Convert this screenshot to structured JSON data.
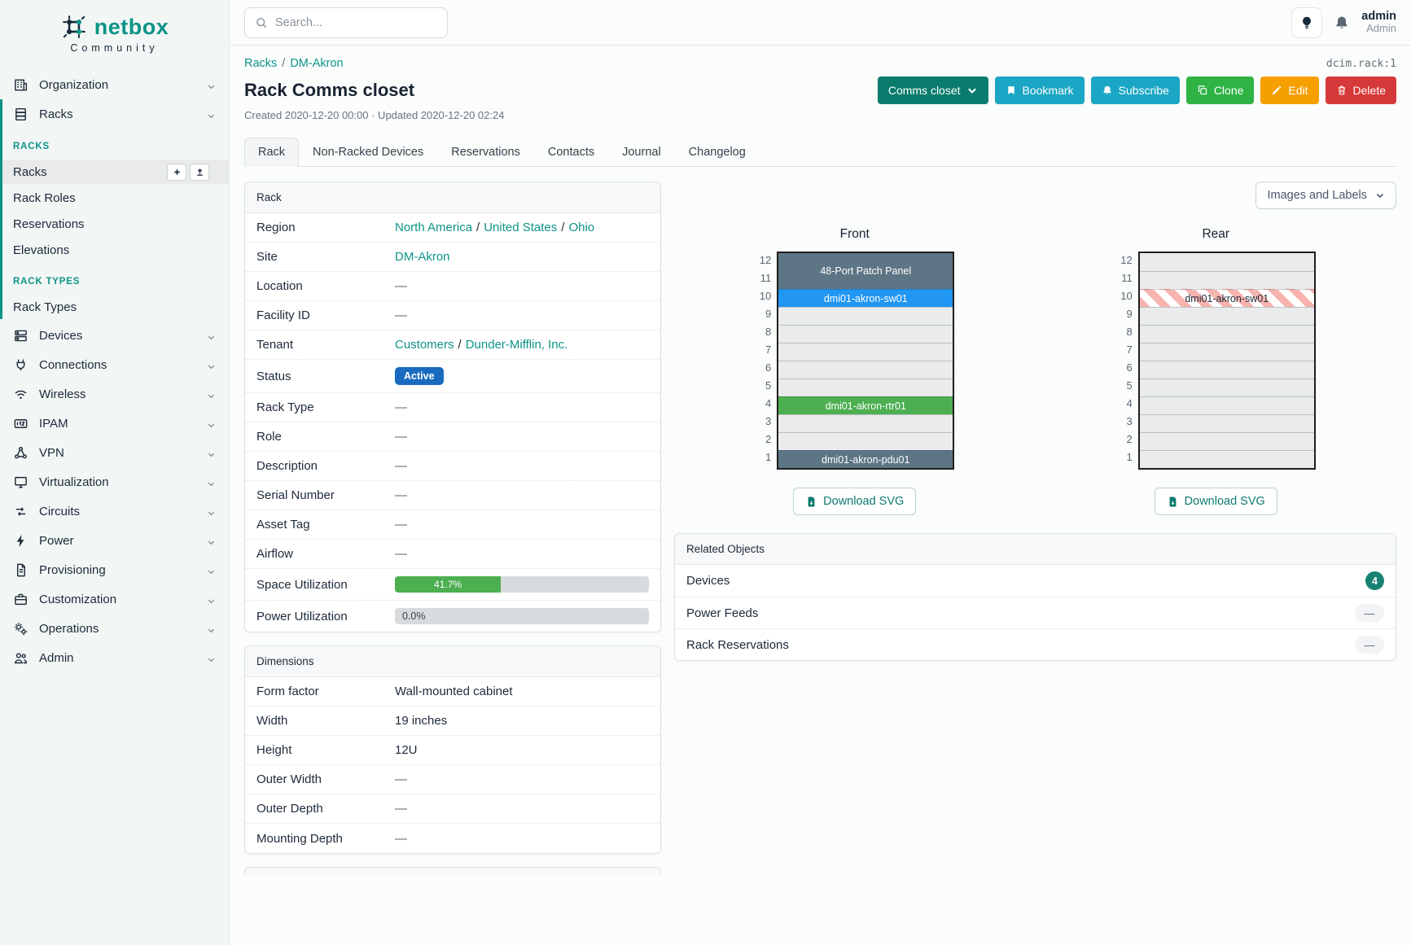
{
  "brand": {
    "name": "netbox",
    "tagline": "Community"
  },
  "topbar": {
    "search_placeholder": "Search...",
    "username": "admin",
    "role": "Admin"
  },
  "sidebar": {
    "top_items": [
      {
        "label": "Organization",
        "icon": "building"
      }
    ],
    "racks_group": {
      "parent": {
        "label": "Racks",
        "icon": "rack"
      },
      "sections": [
        {
          "heading": "RACKS",
          "items": [
            "Racks",
            "Rack Roles",
            "Reservations",
            "Elevations"
          ],
          "active_item": "Racks"
        },
        {
          "heading": "RACK TYPES",
          "items": [
            "Rack Types"
          ],
          "active_item": ""
        }
      ]
    },
    "bottom_items": [
      {
        "label": "Devices",
        "icon": "server"
      },
      {
        "label": "Connections",
        "icon": "plug"
      },
      {
        "label": "Wireless",
        "icon": "wifi"
      },
      {
        "label": "IPAM",
        "icon": "ipam"
      },
      {
        "label": "VPN",
        "icon": "vpn"
      },
      {
        "label": "Virtualization",
        "icon": "monitor"
      },
      {
        "label": "Circuits",
        "icon": "circuits"
      },
      {
        "label": "Power",
        "icon": "bolt"
      },
      {
        "label": "Provisioning",
        "icon": "doc"
      },
      {
        "label": "Customization",
        "icon": "briefcase"
      },
      {
        "label": "Operations",
        "icon": "gears"
      },
      {
        "label": "Admin",
        "icon": "users"
      }
    ]
  },
  "header": {
    "breadcrumbs": [
      "Racks",
      "DM-Akron"
    ],
    "object_id": "dcim.rack:1",
    "title": "Rack Comms closet",
    "meta": "Created 2020-12-20 00:00 · Updated 2020-12-20 02:24",
    "actions": [
      {
        "label": "Comms closet",
        "color": "#0a7c6d"
      },
      {
        "label": "Bookmark",
        "color": "#1aa6c4"
      },
      {
        "label": "Subscribe",
        "color": "#1aa6c4"
      },
      {
        "label": "Clone",
        "color": "#2fb344"
      },
      {
        "label": "Edit",
        "color": "#f59f00"
      },
      {
        "label": "Delete",
        "color": "#d63939"
      }
    ],
    "tabs": [
      "Rack",
      "Non-Racked Devices",
      "Reservations",
      "Contacts",
      "Journal",
      "Changelog"
    ],
    "active_tab": "Rack"
  },
  "rack_panel": {
    "title": "Rack",
    "rows": [
      {
        "label": "Region",
        "type": "links",
        "links": [
          "North America",
          "United States",
          "Ohio"
        ]
      },
      {
        "label": "Site",
        "type": "links",
        "links": [
          "DM-Akron"
        ]
      },
      {
        "label": "Location",
        "type": "text",
        "value": "—"
      },
      {
        "label": "Facility ID",
        "type": "text",
        "value": "—"
      },
      {
        "label": "Tenant",
        "type": "links",
        "links": [
          "Customers",
          "Dunder-Mifflin, Inc."
        ]
      },
      {
        "label": "Status",
        "type": "badge",
        "value": "Active",
        "color": "#1a6bbf"
      },
      {
        "label": "Rack Type",
        "type": "text",
        "value": "—"
      },
      {
        "label": "Role",
        "type": "text",
        "value": "—"
      },
      {
        "label": "Description",
        "type": "text",
        "value": "—"
      },
      {
        "label": "Serial Number",
        "type": "text",
        "value": "—"
      },
      {
        "label": "Asset Tag",
        "type": "text",
        "value": "—"
      },
      {
        "label": "Airflow",
        "type": "text",
        "value": "—"
      },
      {
        "label": "Space Utilization",
        "type": "bar",
        "percent": 41.7,
        "display": "41.7%",
        "color": "#4caf50"
      },
      {
        "label": "Power Utilization",
        "type": "bar",
        "percent": 0,
        "display": "0.0%",
        "color": "#4caf50"
      }
    ]
  },
  "dimensions_panel": {
    "title": "Dimensions",
    "rows": [
      {
        "label": "Form factor",
        "value": "Wall-mounted cabinet"
      },
      {
        "label": "Width",
        "value": "19 inches"
      },
      {
        "label": "Height",
        "value": "12U"
      },
      {
        "label": "Outer Width",
        "value": "—"
      },
      {
        "label": "Outer Depth",
        "value": "—"
      },
      {
        "label": "Mounting Depth",
        "value": "—"
      }
    ]
  },
  "elevation": {
    "toggle_label": "Images and Labels",
    "download_label": "Download SVG",
    "unit_count": 12,
    "colors": {
      "slate": "#5d7585",
      "blue": "#2196f3",
      "green": "#4caf50",
      "stripe": "#f7b3ae"
    },
    "views": [
      {
        "title": "Front",
        "units": [
          {
            "span": 2,
            "label": "48-Port Patch Panel",
            "style": "slate"
          },
          {
            "span": 1,
            "label": "dmi01-akron-sw01",
            "style": "blue"
          },
          {
            "span": 1,
            "style": "empty"
          },
          {
            "span": 1,
            "style": "empty"
          },
          {
            "span": 1,
            "style": "empty"
          },
          {
            "span": 1,
            "style": "empty"
          },
          {
            "span": 1,
            "style": "empty"
          },
          {
            "span": 1,
            "label": "dmi01-akron-rtr01",
            "style": "green"
          },
          {
            "span": 1,
            "style": "empty"
          },
          {
            "span": 1,
            "style": "empty"
          },
          {
            "span": 1,
            "label": "dmi01-akron-pdu01",
            "style": "slate"
          }
        ]
      },
      {
        "title": "Rear",
        "units": [
          {
            "span": 1,
            "style": "empty"
          },
          {
            "span": 1,
            "style": "empty"
          },
          {
            "span": 1,
            "label": "dmi01-akron-sw01",
            "style": "striped"
          },
          {
            "span": 1,
            "style": "empty"
          },
          {
            "span": 1,
            "style": "empty"
          },
          {
            "span": 1,
            "style": "empty"
          },
          {
            "span": 1,
            "style": "empty"
          },
          {
            "span": 1,
            "style": "empty"
          },
          {
            "span": 1,
            "style": "empty"
          },
          {
            "span": 1,
            "style": "empty"
          },
          {
            "span": 1,
            "style": "empty"
          },
          {
            "span": 1,
            "style": "empty"
          }
        ]
      }
    ]
  },
  "related_objects": {
    "title": "Related Objects",
    "rows": [
      {
        "label": "Devices",
        "count": "4"
      },
      {
        "label": "Power Feeds",
        "count": "—"
      },
      {
        "label": "Rack Reservations",
        "count": "—"
      }
    ]
  }
}
